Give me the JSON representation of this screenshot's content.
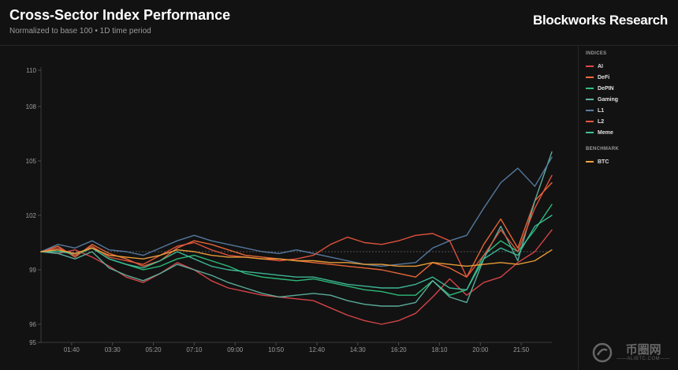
{
  "header": {
    "title": "Cross-Sector Index Performance",
    "subtitle": "Normalized to base 100 • 1D time period",
    "brand": "Blockworks Research"
  },
  "legend": {
    "indices_heading": "INDICES",
    "benchmark_heading": "BENCHMARK"
  },
  "watermark": {
    "main": "币圈网",
    "sub": "——ALIBTC.COM——"
  },
  "chart_data": {
    "type": "line",
    "title": "Cross-Sector Index Performance",
    "subtitle": "Normalized to base 100 • 1D time period",
    "x_labels": [
      "01:40",
      "03:30",
      "05:20",
      "07:10",
      "09:00",
      "10:50",
      "12:40",
      "14:30",
      "16:20",
      "18:10",
      "20:00",
      "21:50"
    ],
    "y_ticks": [
      95,
      96,
      99,
      102,
      105,
      108,
      110
    ],
    "ylim": [
      95,
      110
    ],
    "baseline": 100,
    "x_count": 31,
    "grid": false,
    "legend_position": "right",
    "series": [
      {
        "name": "AI",
        "group": "indices",
        "color": "#e0474c",
        "values": [
          100,
          99.9,
          100.1,
          99.7,
          99.2,
          98.6,
          98.3,
          98.8,
          99.4,
          99.0,
          98.4,
          98.0,
          97.8,
          97.6,
          97.5,
          97.4,
          97.3,
          96.9,
          96.5,
          96.2,
          96.0,
          96.2,
          96.6,
          97.5,
          98.5,
          97.6,
          98.3,
          98.6,
          99.4,
          100.0,
          101.2
        ]
      },
      {
        "name": "DeFi",
        "group": "indices",
        "color": "#f06a3a",
        "values": [
          100,
          100.3,
          99.7,
          100.4,
          99.9,
          99.6,
          99.2,
          99.5,
          100.2,
          100.6,
          100.4,
          100.1,
          99.8,
          99.7,
          99.6,
          99.5,
          99.4,
          99.3,
          99.2,
          99.1,
          99.0,
          98.8,
          98.6,
          99.4,
          99.1,
          98.6,
          100.4,
          101.8,
          100.2,
          102.8,
          103.8
        ]
      },
      {
        "name": "DePIN",
        "group": "indices",
        "color": "#2ec27e",
        "values": [
          100,
          100.1,
          99.8,
          100.2,
          99.6,
          99.3,
          99.0,
          99.2,
          99.6,
          99.8,
          99.5,
          99.2,
          98.8,
          98.6,
          98.5,
          98.4,
          98.5,
          98.3,
          98.1,
          97.9,
          97.8,
          97.6,
          97.6,
          98.4,
          97.6,
          97.9,
          99.8,
          100.6,
          100.0,
          101.2,
          102.6
        ]
      },
      {
        "name": "Gaming",
        "group": "indices",
        "color": "#5fb3a1",
        "values": [
          100,
          99.9,
          99.6,
          100.0,
          99.1,
          98.7,
          98.4,
          98.8,
          99.3,
          99.0,
          98.7,
          98.3,
          98.0,
          97.7,
          97.5,
          97.6,
          97.7,
          97.6,
          97.3,
          97.1,
          97.0,
          97.0,
          97.2,
          98.4,
          97.5,
          97.2,
          99.6,
          101.4,
          99.5,
          102.8,
          105.5
        ]
      },
      {
        "name": "L1",
        "group": "indices",
        "color": "#5a7ea6",
        "values": [
          100,
          100.4,
          100.2,
          100.6,
          100.1,
          100.0,
          99.8,
          100.2,
          100.6,
          100.9,
          100.6,
          100.4,
          100.2,
          100.0,
          99.9,
          100.1,
          99.9,
          99.7,
          99.5,
          99.3,
          99.2,
          99.3,
          99.4,
          100.2,
          100.6,
          100.9,
          102.4,
          103.8,
          104.6,
          103.6,
          105.2
        ]
      },
      {
        "name": "L2",
        "group": "indices",
        "color": "#e8553e",
        "values": [
          100,
          100.2,
          99.8,
          100.3,
          99.7,
          99.5,
          99.3,
          99.8,
          100.3,
          100.5,
          100.1,
          99.8,
          99.7,
          99.6,
          99.5,
          99.6,
          99.8,
          100.4,
          100.8,
          100.5,
          100.4,
          100.6,
          100.9,
          101.0,
          100.6,
          98.6,
          99.8,
          101.2,
          100.0,
          102.4,
          104.2
        ]
      },
      {
        "name": "Meme",
        "group": "indices",
        "color": "#3fbf9b",
        "values": [
          100,
          100.0,
          99.9,
          100.2,
          99.6,
          99.3,
          99.1,
          99.5,
          100.0,
          99.6,
          99.2,
          99.0,
          98.9,
          98.8,
          98.7,
          98.6,
          98.6,
          98.4,
          98.2,
          98.1,
          98.0,
          98.0,
          98.2,
          98.6,
          98.0,
          97.9,
          99.6,
          100.2,
          99.8,
          101.4,
          102.0
        ]
      },
      {
        "name": "BTC",
        "group": "benchmark",
        "color": "#f2a23a",
        "values": [
          100,
          100.1,
          99.9,
          100.2,
          99.8,
          99.7,
          99.6,
          99.8,
          100.1,
          100.0,
          99.8,
          99.7,
          99.7,
          99.6,
          99.6,
          99.5,
          99.5,
          99.4,
          99.4,
          99.3,
          99.3,
          99.2,
          99.2,
          99.4,
          99.3,
          99.2,
          99.3,
          99.4,
          99.3,
          99.5,
          100.1
        ]
      }
    ]
  }
}
